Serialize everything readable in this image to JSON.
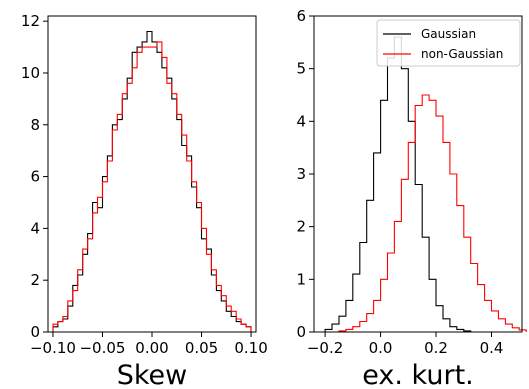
{
  "chart_data": [
    {
      "type": "step-histogram",
      "xlabel": "Skew",
      "ylabel": "",
      "xlim": [
        -0.105,
        0.105
      ],
      "ylim": [
        0,
        12.2
      ],
      "xticks": [
        -0.1,
        -0.05,
        0.0,
        0.05,
        0.1
      ],
      "xtick_labels": [
        "−0.10",
        "−0.05",
        "0.00",
        "0.05",
        "0.10"
      ],
      "yticks": [
        0,
        2,
        4,
        6,
        8,
        10,
        12
      ],
      "ytick_labels": [
        "0",
        "2",
        "4",
        "6",
        "8",
        "10",
        "12"
      ],
      "grid": false,
      "legend": null,
      "series": [
        {
          "color": "#000000",
          "x": [
            -0.1,
            -0.095,
            -0.09,
            -0.085,
            -0.08,
            -0.075,
            -0.07,
            -0.065,
            -0.06,
            -0.055,
            -0.05,
            -0.045,
            -0.04,
            -0.035,
            -0.03,
            -0.025,
            -0.02,
            -0.015,
            -0.01,
            -0.005,
            0.0,
            0.005,
            0.01,
            0.015,
            0.02,
            0.025,
            0.03,
            0.035,
            0.04,
            0.045,
            0.05,
            0.055,
            0.06,
            0.065,
            0.07,
            0.075,
            0.08,
            0.085,
            0.09,
            0.095
          ],
          "values": [
            0.2,
            0.4,
            0.5,
            1.0,
            1.8,
            2.2,
            3.0,
            3.8,
            5.0,
            4.8,
            6.0,
            6.8,
            8.0,
            8.2,
            9.0,
            9.8,
            10.8,
            11.0,
            11.2,
            11.6,
            11.2,
            10.8,
            10.2,
            9.8,
            9.0,
            8.2,
            7.2,
            6.8,
            5.6,
            4.8,
            3.6,
            3.2,
            2.2,
            1.6,
            1.2,
            0.8,
            0.6,
            0.4,
            0.3,
            0.2
          ]
        },
        {
          "color": "#ff0000",
          "x": [
            -0.1,
            -0.095,
            -0.09,
            -0.085,
            -0.08,
            -0.075,
            -0.07,
            -0.065,
            -0.06,
            -0.055,
            -0.05,
            -0.045,
            -0.04,
            -0.035,
            -0.03,
            -0.025,
            -0.02,
            -0.015,
            -0.01,
            -0.005,
            0.0,
            0.005,
            0.01,
            0.015,
            0.02,
            0.025,
            0.03,
            0.035,
            0.04,
            0.045,
            0.05,
            0.055,
            0.06,
            0.065,
            0.07,
            0.075,
            0.08,
            0.085,
            0.09,
            0.095
          ],
          "values": [
            0.3,
            0.4,
            0.6,
            1.2,
            1.6,
            2.4,
            3.2,
            3.6,
            4.6,
            5.2,
            5.8,
            6.6,
            7.8,
            8.4,
            9.2,
            9.6,
            10.2,
            10.8,
            11.0,
            11.0,
            11.0,
            11.2,
            10.6,
            9.6,
            9.2,
            8.4,
            7.6,
            6.6,
            5.8,
            5.0,
            4.0,
            3.0,
            2.4,
            1.8,
            1.4,
            1.0,
            0.8,
            0.5,
            0.3,
            0.2
          ]
        }
      ]
    },
    {
      "type": "step-histogram",
      "xlabel": "ex. kurt.",
      "ylabel": "",
      "xlim": [
        -0.24,
        0.51
      ],
      "ylim": [
        0,
        6.0
      ],
      "xticks": [
        -0.2,
        0.0,
        0.2,
        0.4
      ],
      "xtick_labels": [
        "−0.2",
        "0.0",
        "0.2",
        "0.4"
      ],
      "yticks": [
        0,
        1,
        2,
        3,
        4,
        5,
        6
      ],
      "ytick_labels": [
        "0",
        "1",
        "2",
        "3",
        "4",
        "5",
        "6"
      ],
      "grid": false,
      "legend": {
        "position": "upper right",
        "entries": [
          {
            "label": "Gaussian",
            "color": "#000000"
          },
          {
            "label": "non-Gaussian",
            "color": "#ff0000"
          }
        ]
      },
      "series": [
        {
          "name": "Gaussian",
          "color": "#000000",
          "x": [
            -0.2,
            -0.175,
            -0.15,
            -0.125,
            -0.1,
            -0.075,
            -0.05,
            -0.025,
            0.0,
            0.025,
            0.05,
            0.075,
            0.1,
            0.125,
            0.15,
            0.175,
            0.2,
            0.225,
            0.25,
            0.275,
            0.3
          ],
          "values": [
            0.05,
            0.15,
            0.3,
            0.6,
            1.1,
            1.7,
            2.5,
            3.4,
            4.4,
            5.2,
            5.6,
            5.0,
            4.0,
            2.8,
            1.8,
            1.0,
            0.5,
            0.25,
            0.1,
            0.05,
            0.02
          ]
        },
        {
          "name": "non-Gaussian",
          "color": "#ff0000",
          "x": [
            -0.15,
            -0.125,
            -0.1,
            -0.075,
            -0.05,
            -0.025,
            0.0,
            0.025,
            0.05,
            0.075,
            0.1,
            0.125,
            0.15,
            0.175,
            0.2,
            0.225,
            0.25,
            0.275,
            0.3,
            0.325,
            0.35,
            0.375,
            0.4,
            0.425,
            0.45,
            0.475,
            0.5
          ],
          "values": [
            0.02,
            0.05,
            0.1,
            0.2,
            0.35,
            0.6,
            1.0,
            1.5,
            2.1,
            2.9,
            3.6,
            4.3,
            4.5,
            4.4,
            4.1,
            3.6,
            3.0,
            2.4,
            1.8,
            1.3,
            0.9,
            0.6,
            0.4,
            0.25,
            0.15,
            0.08,
            0.04
          ]
        }
      ]
    }
  ]
}
